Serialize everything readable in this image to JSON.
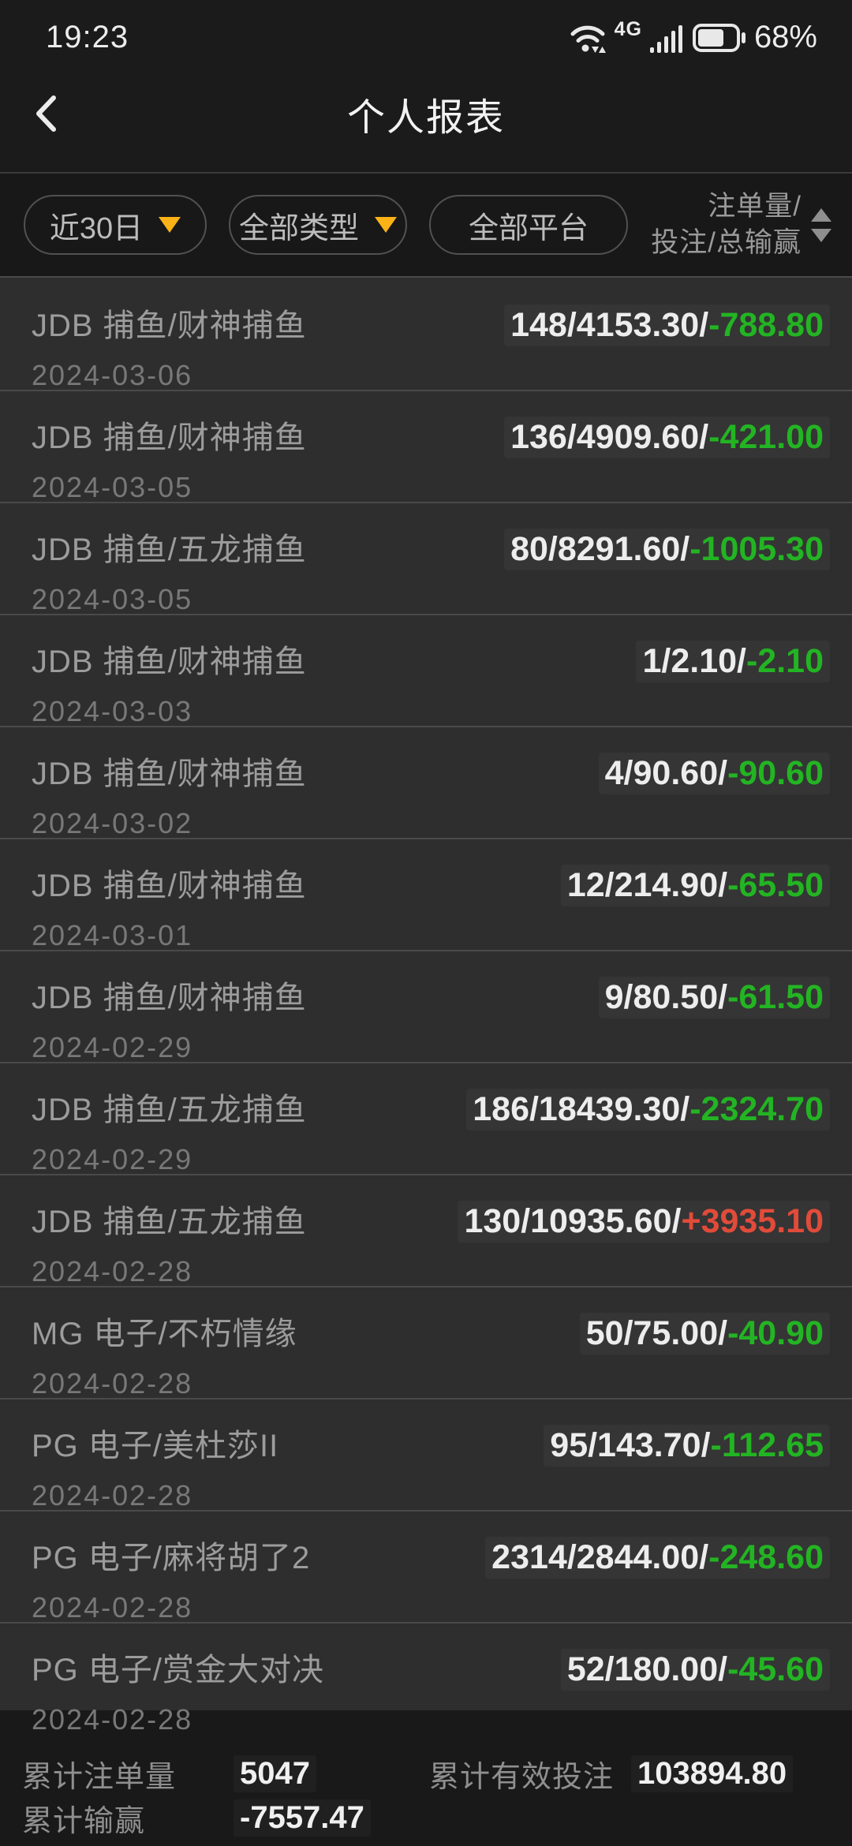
{
  "status_bar": {
    "time": "19:23",
    "network": "4G",
    "battery_percent": "68%"
  },
  "header": {
    "title": "个人报表"
  },
  "filters": {
    "pills": [
      {
        "label": "近30日",
        "dropdown": true
      },
      {
        "label": "全部类型",
        "dropdown": true
      },
      {
        "label": "全部平台",
        "dropdown": false
      }
    ],
    "sort": {
      "line1": "注单量/",
      "line2": "投注/总输赢"
    }
  },
  "report_rows": [
    {
      "game": "JDB 捕鱼/财神捕鱼",
      "date": "2024-03-06",
      "stats": "148/4153.30/",
      "win_loss": "-788.80",
      "trend": "green"
    },
    {
      "game": "JDB 捕鱼/财神捕鱼",
      "date": "2024-03-05",
      "stats": "136/4909.60/",
      "win_loss": "-421.00",
      "trend": "green"
    },
    {
      "game": "JDB 捕鱼/五龙捕鱼",
      "date": "2024-03-05",
      "stats": "80/8291.60/",
      "win_loss": "-1005.30",
      "trend": "green"
    },
    {
      "game": "JDB 捕鱼/财神捕鱼",
      "date": "2024-03-03",
      "stats": "1/2.10/",
      "win_loss": "-2.10",
      "trend": "green"
    },
    {
      "game": "JDB 捕鱼/财神捕鱼",
      "date": "2024-03-02",
      "stats": "4/90.60/",
      "win_loss": "-90.60",
      "trend": "green"
    },
    {
      "game": "JDB 捕鱼/财神捕鱼",
      "date": "2024-03-01",
      "stats": "12/214.90/",
      "win_loss": "-65.50",
      "trend": "green"
    },
    {
      "game": "JDB 捕鱼/财神捕鱼",
      "date": "2024-02-29",
      "stats": "9/80.50/",
      "win_loss": "-61.50",
      "trend": "green"
    },
    {
      "game": "JDB 捕鱼/五龙捕鱼",
      "date": "2024-02-29",
      "stats": "186/18439.30/",
      "win_loss": "-2324.70",
      "trend": "green"
    },
    {
      "game": "JDB 捕鱼/五龙捕鱼",
      "date": "2024-02-28",
      "stats": "130/10935.60/",
      "win_loss": "+3935.10",
      "trend": "red"
    },
    {
      "game": "MG 电子/不朽情缘",
      "date": "2024-02-28",
      "stats": "50/75.00/",
      "win_loss": "-40.90",
      "trend": "green"
    },
    {
      "game": "PG 电子/美杜莎II",
      "date": "2024-02-28",
      "stats": "95/143.70/",
      "win_loss": "-112.65",
      "trend": "green"
    },
    {
      "game": "PG 电子/麻将胡了2",
      "date": "2024-02-28",
      "stats": "2314/2844.00/",
      "win_loss": "-248.60",
      "trend": "green"
    },
    {
      "game": "PG 电子/赏金大对决",
      "date": "2024-02-28",
      "stats": "52/180.00/",
      "win_loss": "-45.60",
      "trend": "green"
    }
  ],
  "summary": {
    "total_bets_label": "累计注单量",
    "total_bets_value": "5047",
    "total_valid_bet_label": "累计有效投注",
    "total_valid_bet_value": "103894.80",
    "total_win_loss_label": "累计输赢",
    "total_win_loss_value": "-7557.47"
  },
  "colors": {
    "loss_green": "#23b423",
    "profit_red": "#e14b3a",
    "dropdown_arrow_amber": "#fab216",
    "row_background": "#2e2e2e",
    "top_background": "#1b1b1b"
  }
}
